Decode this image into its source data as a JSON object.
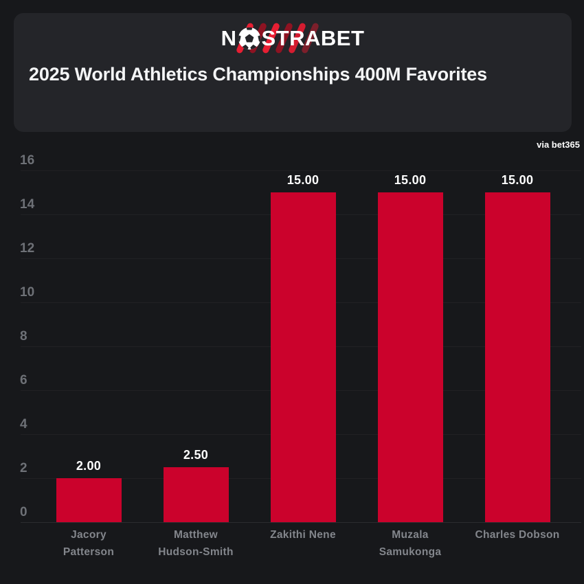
{
  "page": {
    "background": "#17181b"
  },
  "header": {
    "card_color": "#242529",
    "logo": {
      "text_left": "N",
      "text_right": "STRABET",
      "ball_icon": "soccer-ball-icon",
      "stripe_colors": [
        "#e71f33",
        "#8e1322",
        "#e71f33",
        "#8e1322",
        "#d41c30",
        "#7c1f2b"
      ]
    },
    "title": "2025 World Athletics Championships 400M Favorites"
  },
  "attribution": "via bet365",
  "chart_data": {
    "type": "bar",
    "title": "2025 World Athletics Championships 400M Favorites",
    "xlabel": "",
    "ylabel": "",
    "categories": [
      "Jacory Patterson",
      "Matthew Hudson-Smith",
      "Zakithi Nene",
      "Muzala Samukonga",
      "Charles Dobson"
    ],
    "category_lines": [
      [
        "Jacory",
        "Patterson"
      ],
      [
        "Matthew",
        "Hudson-Smith"
      ],
      [
        "Zakithi Nene"
      ],
      [
        "Muzala",
        "Samukonga"
      ],
      [
        "Charles Dobson"
      ]
    ],
    "values": [
      2.0,
      2.5,
      15.0,
      15.0,
      15.0
    ],
    "value_labels": [
      "2.00",
      "2.50",
      "15.00",
      "15.00",
      "15.00"
    ],
    "ylim": [
      0,
      16
    ],
    "yticks": [
      0,
      2,
      4,
      6,
      8,
      10,
      12,
      14,
      16
    ],
    "grid": true,
    "legend_position": "none",
    "bar_color": "#cb022c",
    "value_label_color": "#ffffff",
    "axis_label_color": "#6e7177",
    "category_label_color": "#83868c"
  }
}
